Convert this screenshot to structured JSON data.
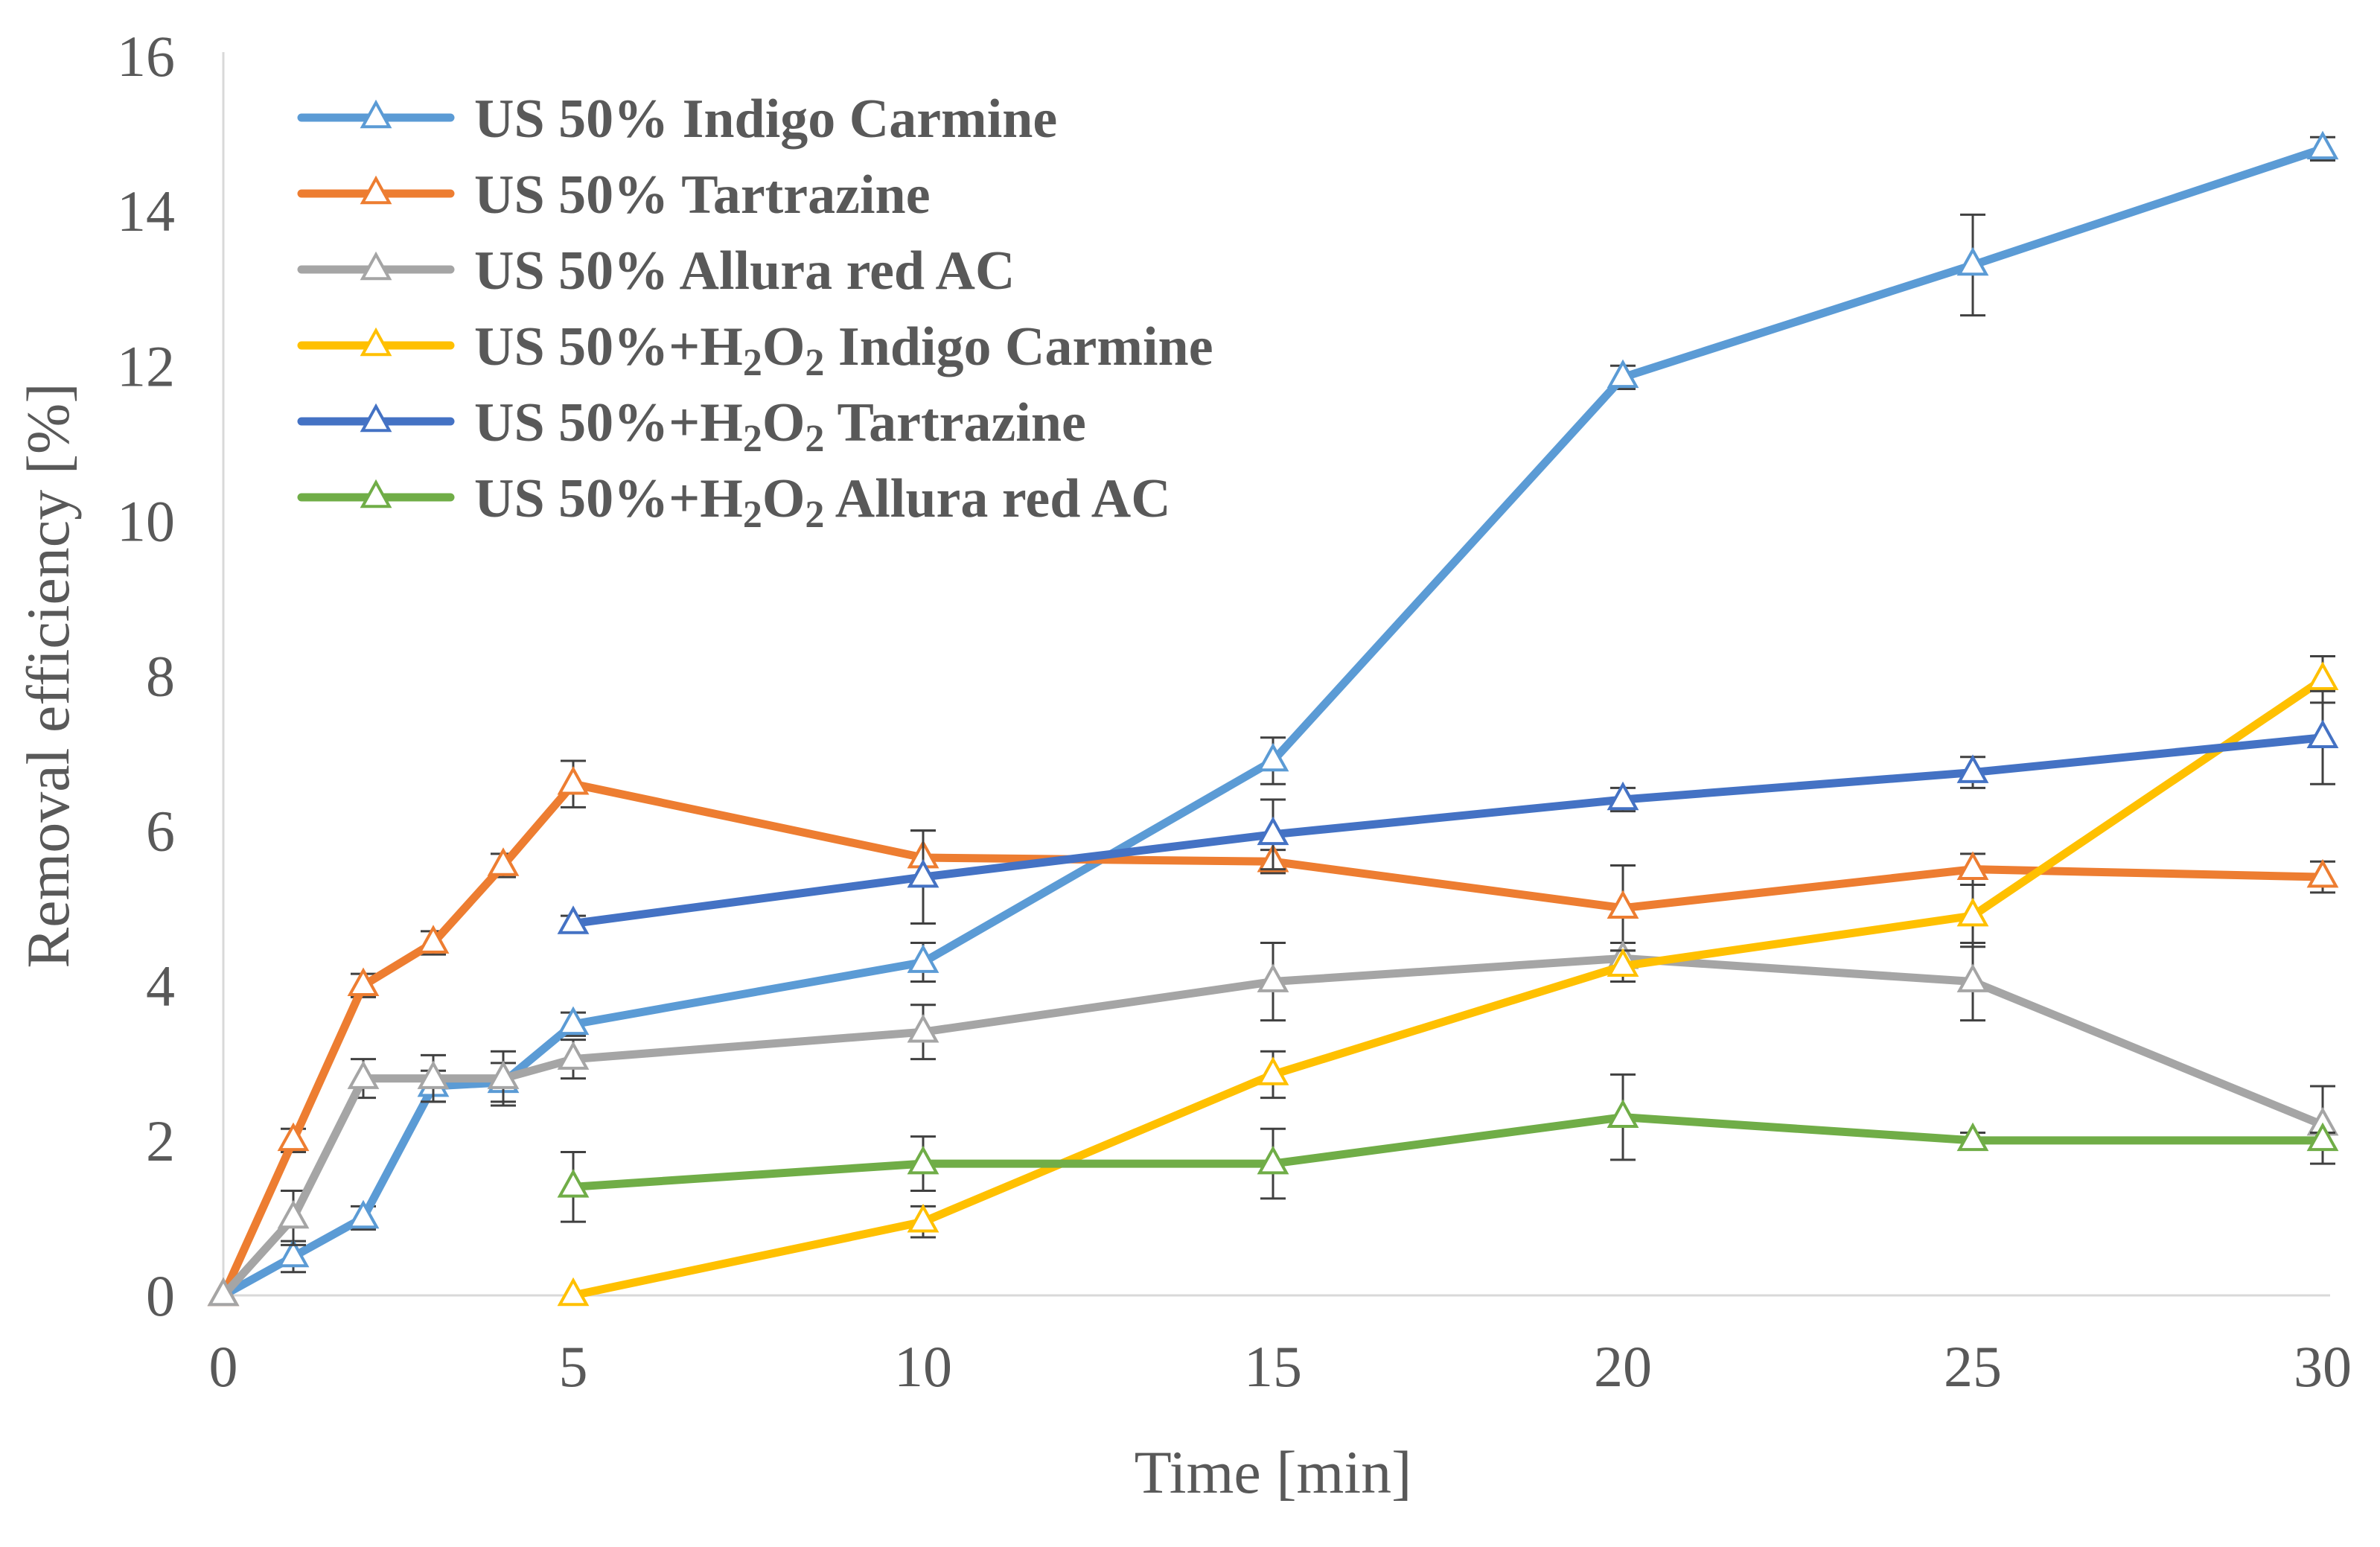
{
  "chart_data": {
    "type": "line",
    "title": "",
    "xlabel": "Time [min]",
    "ylabel": "Removal efficiency [%]",
    "xlim": [
      0,
      30
    ],
    "ylim": [
      0,
      16
    ],
    "x_ticks": [
      "0",
      "5",
      "10",
      "15",
      "20",
      "25",
      "30"
    ],
    "y_ticks": [
      "0",
      "2",
      "4",
      "6",
      "8",
      "10",
      "12",
      "14",
      "16"
    ],
    "grid": false,
    "legend_position": "top-left",
    "marker": "open-triangle",
    "series": [
      {
        "name": "US 50% Indigo Carmine",
        "legend": {
          "pre": "US 50% Indigo Carmine",
          "sub1": "",
          "mid": "",
          "sub2": "",
          "post": ""
        },
        "color": "#5B9BD5",
        "x": [
          0,
          1,
          2,
          3,
          4,
          5,
          10,
          15,
          20,
          25,
          30
        ],
        "values": [
          0,
          0.5,
          1.0,
          2.7,
          2.75,
          3.5,
          4.3,
          6.9,
          11.85,
          13.3,
          14.8
        ],
        "errors": [
          0,
          0.2,
          0.15,
          0.2,
          0.25,
          0.15,
          0.25,
          0.3,
          0.15,
          0.65,
          0.15
        ]
      },
      {
        "name": "US 50% Tartrazine",
        "legend": {
          "pre": "US 50% Tartrazine",
          "sub1": "",
          "mid": "",
          "sub2": "",
          "post": ""
        },
        "color": "#ED7D31",
        "x": [
          0,
          1,
          2,
          3,
          4,
          5,
          10,
          15,
          20,
          25,
          30
        ],
        "values": [
          0,
          2.0,
          4.0,
          4.55,
          5.55,
          6.6,
          5.65,
          5.6,
          5.0,
          5.5,
          5.4
        ],
        "errors": [
          0,
          0.15,
          0.15,
          0.15,
          0.15,
          0.3,
          0.35,
          0.15,
          0.55,
          0.2,
          0.2
        ]
      },
      {
        "name": "US 50% Allura red AC",
        "legend": {
          "pre": "US 50% Allura red AC",
          "sub1": "",
          "mid": "",
          "sub2": "",
          "post": ""
        },
        "color": "#A5A5A5",
        "x": [
          0,
          1,
          2,
          3,
          4,
          5,
          10,
          15,
          20,
          25,
          30
        ],
        "values": [
          0,
          1.0,
          2.8,
          2.8,
          2.8,
          3.05,
          3.4,
          4.05,
          4.35,
          4.05,
          2.2
        ],
        "errors": [
          0,
          0.35,
          0.25,
          0.3,
          0.35,
          0.25,
          0.35,
          0.5,
          0.2,
          0.5,
          0.5
        ]
      },
      {
        "name": "US 50%+H2O2 Indigo Carmine",
        "legend": {
          "pre": "US 50%+H",
          "sub1": "2",
          "mid": "O",
          "sub2": "2",
          "post": " Indigo Carmine"
        },
        "color": "#FFC000",
        "x": [
          5,
          10,
          15,
          20,
          25,
          30
        ],
        "values": [
          0,
          0.95,
          2.85,
          4.25,
          4.9,
          7.95
        ],
        "errors": [
          0,
          0.2,
          0.3,
          0.2,
          0.4,
          0.3
        ]
      },
      {
        "name": "US 50%+H2O2 Tartrazine",
        "legend": {
          "pre": "US 50%+H",
          "sub1": "2",
          "mid": "O",
          "sub2": "2",
          "post": " Tartrazine"
        },
        "color": "#4472C4",
        "x": [
          5,
          10,
          15,
          20,
          25,
          30
        ],
        "values": [
          4.8,
          5.4,
          5.95,
          6.4,
          6.75,
          7.2
        ],
        "errors": [
          0.1,
          0.6,
          0.45,
          0.15,
          0.2,
          0.6
        ]
      },
      {
        "name": "US 50%+H2O2 Allura red AC",
        "legend": {
          "pre": "US 50%+H",
          "sub1": "2",
          "mid": "O",
          "sub2": "2",
          "post": " Allura red AC"
        },
        "color": "#70AD47",
        "x": [
          5,
          10,
          15,
          20,
          25,
          30
        ],
        "values": [
          1.4,
          1.7,
          1.7,
          2.3,
          2.0,
          2.0
        ],
        "errors": [
          0.45,
          0.35,
          0.45,
          0.55,
          0.1,
          0.1
        ]
      }
    ]
  }
}
